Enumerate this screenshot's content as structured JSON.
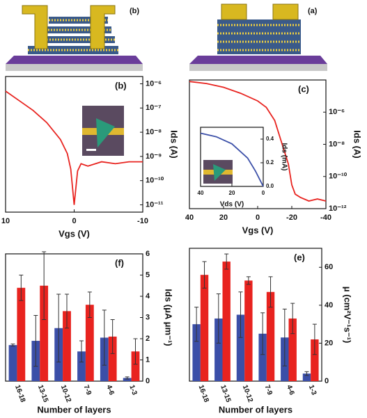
{
  "schematics": [
    {
      "label": "(b)"
    },
    {
      "label": "(a)"
    }
  ],
  "chart_data": [
    {
      "type": "line",
      "label": "(c)",
      "xlabel": "Vgs (V)",
      "ylabel": "Ids (A)",
      "log_y": true,
      "x": [
        40,
        30,
        20,
        10,
        0,
        -5,
        -10,
        -15,
        -18,
        -20,
        -22,
        -25,
        -30,
        -35,
        -40
      ],
      "series": [
        {
          "color": "#e8231f",
          "values": [
            8e-05,
            6e-05,
            3.5e-05,
            1.5e-05,
            5e-06,
            2e-06,
            3e-07,
            6e-09,
            6e-10,
            3e-11,
            8e-12,
            5e-12,
            3e-12,
            4e-12,
            3e-12
          ]
        }
      ],
      "xlim": [
        40,
        -40
      ],
      "xticks": [
        40,
        20,
        0,
        -20,
        -40
      ],
      "ylim": [
        1e-12,
        0.0001
      ],
      "yticks": [
        {
          "value": 1e-06,
          "label": "10⁻⁶"
        },
        {
          "value": 1e-08,
          "label": "10⁻⁸"
        },
        {
          "value": 1e-10,
          "label": "10⁻¹⁰"
        },
        {
          "value": 1e-12,
          "label": "10⁻¹²"
        }
      ],
      "inset": {
        "type": "line",
        "xlabel": "Vds (V)",
        "ylabel": "Ids (mA)",
        "x": [
          40,
          30,
          20,
          10,
          5,
          0
        ],
        "series": [
          {
            "color": "#3b4fa8",
            "values": [
              0.45,
              0.42,
              0.36,
              0.24,
              0.13,
              0
            ]
          }
        ],
        "xlim": [
          40,
          0
        ],
        "xticks": [
          40,
          20,
          0
        ],
        "ylim": [
          0,
          0.5
        ],
        "yticks": [
          0.4,
          0.2,
          {
            "value": 0,
            "label": "0.0"
          }
        ]
      }
    },
    {
      "type": "line",
      "label": "(b)",
      "xlabel": "Vgs (V)",
      "ylabel": "Ids (A)",
      "log_y": true,
      "x": [
        10,
        8,
        6,
        4,
        2,
        1,
        0.5,
        0,
        -0.5,
        -1,
        -2,
        -4,
        -6,
        -8,
        -10
      ],
      "series": [
        {
          "color": "#e8231f",
          "values": [
            5e-07,
            2e-07,
            8e-08,
            2.5e-08,
            5e-09,
            1.3e-09,
            3e-10,
            1e-11,
            2.5e-10,
            5e-10,
            4e-10,
            6e-10,
            5e-10,
            6e-10,
            6e-10
          ]
        }
      ],
      "xlim": [
        10,
        -10
      ],
      "xticks": [
        10,
        0,
        -10
      ],
      "ylim": [
        5e-12,
        2e-06
      ],
      "yticks": [
        {
          "value": 1e-06,
          "label": "10⁻⁶"
        },
        {
          "value": 1e-07,
          "label": "10⁻⁷"
        },
        {
          "value": 1e-08,
          "label": "10⁻⁸"
        },
        {
          "value": 1e-09,
          "label": "10⁻⁹"
        },
        {
          "value": 1e-10,
          "label": "10⁻¹⁰"
        },
        {
          "value": 1e-11,
          "label": "10⁻¹¹"
        }
      ]
    },
    {
      "type": "bar",
      "label": "(e)",
      "xlabel": "Number of layers",
      "ylabel": "μ (cm²V⁻¹s⁻¹)",
      "categories": [
        "16-18",
        "13-15",
        "10-12",
        "7-9",
        "4-6",
        "1-3"
      ],
      "series": [
        {
          "color": "#3b4fa8",
          "values": [
            30,
            33,
            35,
            25,
            23,
            4
          ],
          "errors": [
            9,
            13,
            12,
            11,
            15,
            1
          ]
        },
        {
          "color": "#e8231f",
          "values": [
            56,
            63,
            53,
            47,
            33,
            22
          ],
          "errors": [
            7,
            4,
            2,
            8,
            8,
            8
          ]
        }
      ],
      "ylim": [
        0,
        70
      ],
      "yticks": [
        0,
        20,
        40,
        60
      ]
    },
    {
      "type": "bar",
      "label": "(f)",
      "xlabel": "Number of layers",
      "ylabel": "Ids (μA μm⁻¹)",
      "categories": [
        "16-18",
        "13-15",
        "10-12",
        "7-9",
        "4-6",
        "1-3"
      ],
      "series": [
        {
          "color": "#3b4fa8",
          "values": [
            1.7,
            1.9,
            2.5,
            1.4,
            2.05,
            0.15
          ],
          "errors": [
            0.05,
            1.2,
            1.6,
            0.5,
            1.3,
            0.05
          ]
        },
        {
          "color": "#e8231f",
          "values": [
            4.4,
            4.5,
            3.3,
            3.6,
            2.1,
            1.4
          ],
          "errors": [
            0.6,
            1.6,
            0.8,
            0.6,
            0.8,
            0.6
          ]
        }
      ],
      "ylim": [
        0,
        6
      ],
      "yticks": [
        0,
        1,
        2,
        3,
        4,
        5,
        6
      ]
    }
  ]
}
